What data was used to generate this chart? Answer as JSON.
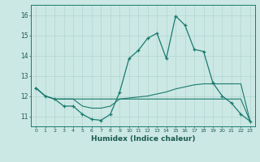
{
  "xlabel": "Humidex (Indice chaleur)",
  "background_color": "#cce8e4",
  "grid_color": "#aad0cc",
  "line_color": "#1a7a6e",
  "xlim": [
    -0.5,
    23.5
  ],
  "ylim": [
    10.5,
    16.5
  ],
  "yticks": [
    11,
    12,
    13,
    14,
    15,
    16
  ],
  "xticks": [
    0,
    1,
    2,
    3,
    4,
    5,
    6,
    7,
    8,
    9,
    10,
    11,
    12,
    13,
    14,
    15,
    16,
    17,
    18,
    19,
    20,
    21,
    22,
    23
  ],
  "series1_x": [
    0,
    1,
    2,
    3,
    4,
    5,
    6,
    7,
    8,
    9,
    10,
    11,
    12,
    13,
    14,
    15,
    16,
    17,
    18,
    19,
    20,
    21,
    22,
    23
  ],
  "series1_y": [
    12.4,
    12.0,
    11.85,
    11.5,
    11.5,
    11.1,
    10.85,
    10.8,
    11.1,
    12.2,
    13.85,
    14.25,
    14.85,
    15.1,
    13.85,
    15.95,
    15.5,
    14.3,
    14.2,
    12.65,
    12.0,
    11.65,
    11.1,
    10.75
  ],
  "series2_x": [
    0,
    1,
    2,
    3,
    4,
    5,
    6,
    7,
    8,
    9,
    10,
    11,
    12,
    13,
    14,
    15,
    16,
    17,
    18,
    19,
    20,
    21,
    22,
    23
  ],
  "series2_y": [
    12.4,
    12.0,
    11.85,
    11.85,
    11.85,
    11.85,
    11.85,
    11.85,
    11.85,
    11.85,
    11.85,
    11.85,
    11.85,
    11.85,
    11.85,
    11.85,
    11.85,
    11.85,
    11.85,
    11.85,
    11.85,
    11.85,
    11.85,
    10.75
  ],
  "series3_x": [
    0,
    1,
    2,
    3,
    4,
    5,
    6,
    7,
    8,
    9,
    10,
    11,
    12,
    13,
    14,
    15,
    16,
    17,
    18,
    19,
    20,
    21,
    22,
    23
  ],
  "series3_y": [
    12.4,
    12.0,
    11.85,
    11.85,
    11.85,
    11.5,
    11.4,
    11.4,
    11.5,
    11.85,
    11.9,
    11.95,
    12.0,
    12.1,
    12.2,
    12.35,
    12.45,
    12.55,
    12.6,
    12.6,
    12.6,
    12.6,
    12.6,
    10.75
  ]
}
